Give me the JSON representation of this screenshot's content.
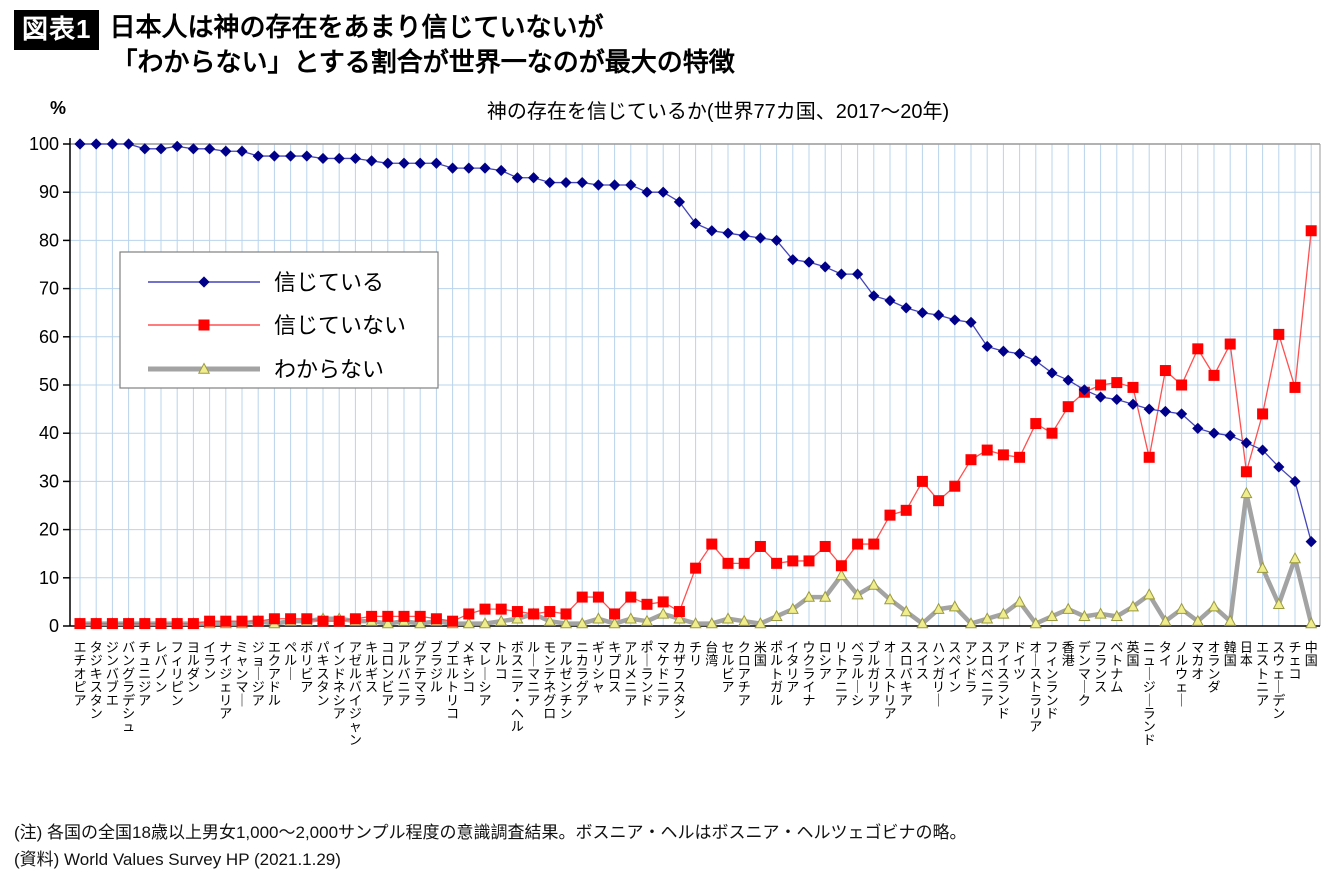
{
  "header": {
    "badge": "図表1",
    "title_line1": "日本人は神の存在をあまり信じていないが",
    "title_line2": "「わからない」とする割合が世界一なのが最大の特徴"
  },
  "chart_data": {
    "type": "line",
    "title": "神の存在を信じているか(世界77カ国、2017〜20年)",
    "y_unit": "%",
    "ylim": [
      0,
      100
    ],
    "ytick_interval": 10,
    "grid": true,
    "legend_position": "upper-left-inside",
    "categories": [
      "エチオピア",
      "タジキスタン",
      "ジンバブエ",
      "バングラデシュ",
      "チュニジア",
      "レバノン",
      "フィリピン",
      "ヨルダン",
      "イラン",
      "ナイジェリア",
      "ミャンマー",
      "ジョージア",
      "エクアドル",
      "ペルー",
      "ボリビア",
      "パキスタン",
      "インドネシア",
      "アゼルバイジャン",
      "キルギス",
      "コロンビア",
      "アルバニア",
      "グアテマラ",
      "ブラジル",
      "プエルトリコ",
      "メキシコ",
      "マレーシア",
      "トルコ",
      "ボスニア・ヘル",
      "ルーマニア",
      "モンテネグロ",
      "アルゼンチン",
      "ニカラグア",
      "ギリシャ",
      "キプロス",
      "アルメニア",
      "ポーランド",
      "マケドニア",
      "カザフスタン",
      "チリ",
      "台湾",
      "セルビア",
      "クロアチア",
      "米国",
      "ポルトガル",
      "イタリア",
      "ウクライナ",
      "ロシア",
      "リトアニア",
      "ベラルーシ",
      "ブルガリア",
      "オーストリア",
      "スロバキア",
      "スイス",
      "ハンガリー",
      "スペイン",
      "アンドラ",
      "スロベニア",
      "アイスランド",
      "ドイツ",
      "オーストラリア",
      "フィンランド",
      "香港",
      "デンマーク",
      "フランス",
      "ベトナム",
      "英国",
      "ニュージーランド",
      "タイ",
      "ノルウェー",
      "マカオ",
      "オランダ",
      "韓国",
      "日本",
      "エストニア",
      "スウェーデン",
      "チェコ",
      "中国"
    ],
    "series": [
      {
        "name": "信じている",
        "marker": "diamond",
        "color": "#00008B",
        "line_color": "#4444BB",
        "values": [
          100,
          100,
          100,
          100,
          99,
          99,
          99.5,
          99,
          99,
          98.5,
          98.5,
          97.5,
          97.5,
          97.5,
          97.5,
          97,
          97,
          97,
          96.5,
          96,
          96,
          96,
          96,
          95,
          95,
          95,
          94.5,
          93,
          93,
          92,
          92,
          92,
          91.5,
          91.5,
          91.5,
          90,
          90,
          88,
          83.5,
          82,
          81.5,
          81,
          80.5,
          80,
          76,
          75.5,
          74.5,
          73,
          73,
          68.5,
          67.5,
          66,
          65,
          64.5,
          63.5,
          63,
          58,
          57,
          56.5,
          55,
          52.5,
          51,
          49,
          47.5,
          47,
          46,
          45,
          44.5,
          44,
          41,
          40,
          39.5,
          38,
          36.5,
          33,
          30,
          17.5
        ]
      },
      {
        "name": "信じていない",
        "marker": "square",
        "color": "#FF0000",
        "line_color": "#FF5050",
        "values": [
          0.5,
          0.5,
          0.5,
          0.5,
          0.5,
          0.5,
          0.5,
          0.5,
          1,
          1,
          1,
          1,
          1.5,
          1.5,
          1.5,
          1,
          1,
          1.5,
          2,
          2,
          2,
          2,
          1.5,
          1,
          2.5,
          3.5,
          3.5,
          3,
          2.5,
          3,
          2.5,
          6,
          6,
          2.5,
          6,
          4.5,
          5,
          3,
          12,
          17,
          13,
          13,
          16.5,
          13,
          13.5,
          13.5,
          16.5,
          12.5,
          17,
          17,
          23,
          24,
          30,
          26,
          29,
          34.5,
          36.5,
          35.5,
          35,
          42,
          40,
          45.5,
          48.5,
          50,
          50.5,
          49.5,
          35,
          53,
          50,
          57.5,
          52,
          58.5,
          32,
          44,
          60.5,
          49.5,
          82
        ]
      },
      {
        "name": "わからない",
        "marker": "triangle",
        "color": "#A3A3A3",
        "marker_fill": "#F0ED8E",
        "marker_stroke": "#9A9A40",
        "values": [
          0.5,
          0.5,
          0.5,
          0.5,
          0.5,
          0.5,
          0.5,
          0.5,
          0.5,
          0.5,
          0.5,
          1,
          0.5,
          1,
          1,
          1.5,
          1.5,
          1,
          1,
          0.5,
          1,
          0.5,
          1,
          0.5,
          0.5,
          0.5,
          1,
          1.5,
          2.5,
          1,
          0.5,
          0.5,
          1.5,
          0.5,
          1.5,
          1,
          2.5,
          1.5,
          0.5,
          0.5,
          1.5,
          1,
          0.5,
          2,
          3.5,
          6,
          6,
          10.5,
          6.5,
          8.5,
          5.5,
          3,
          0.5,
          3.5,
          4,
          0.5,
          1.5,
          2.5,
          5,
          0.5,
          2,
          3.5,
          2,
          2.5,
          2,
          4,
          6.5,
          1,
          3.5,
          1,
          4,
          1,
          27.5,
          12,
          4.5,
          14,
          0.5
        ]
      }
    ],
    "colors": {
      "grid": "#B8D4EC",
      "plot_border": "#999999",
      "axis": "#000000"
    }
  },
  "footer": {
    "note": "(注) 各国の全国18歳以上男女1,000〜2,000サンプル程度の意識調査結果。ボスニア・ヘルはボスニア・ヘルツェゴビナの略。",
    "source": "(資料) World Values Survey HP (2021.1.29)"
  }
}
